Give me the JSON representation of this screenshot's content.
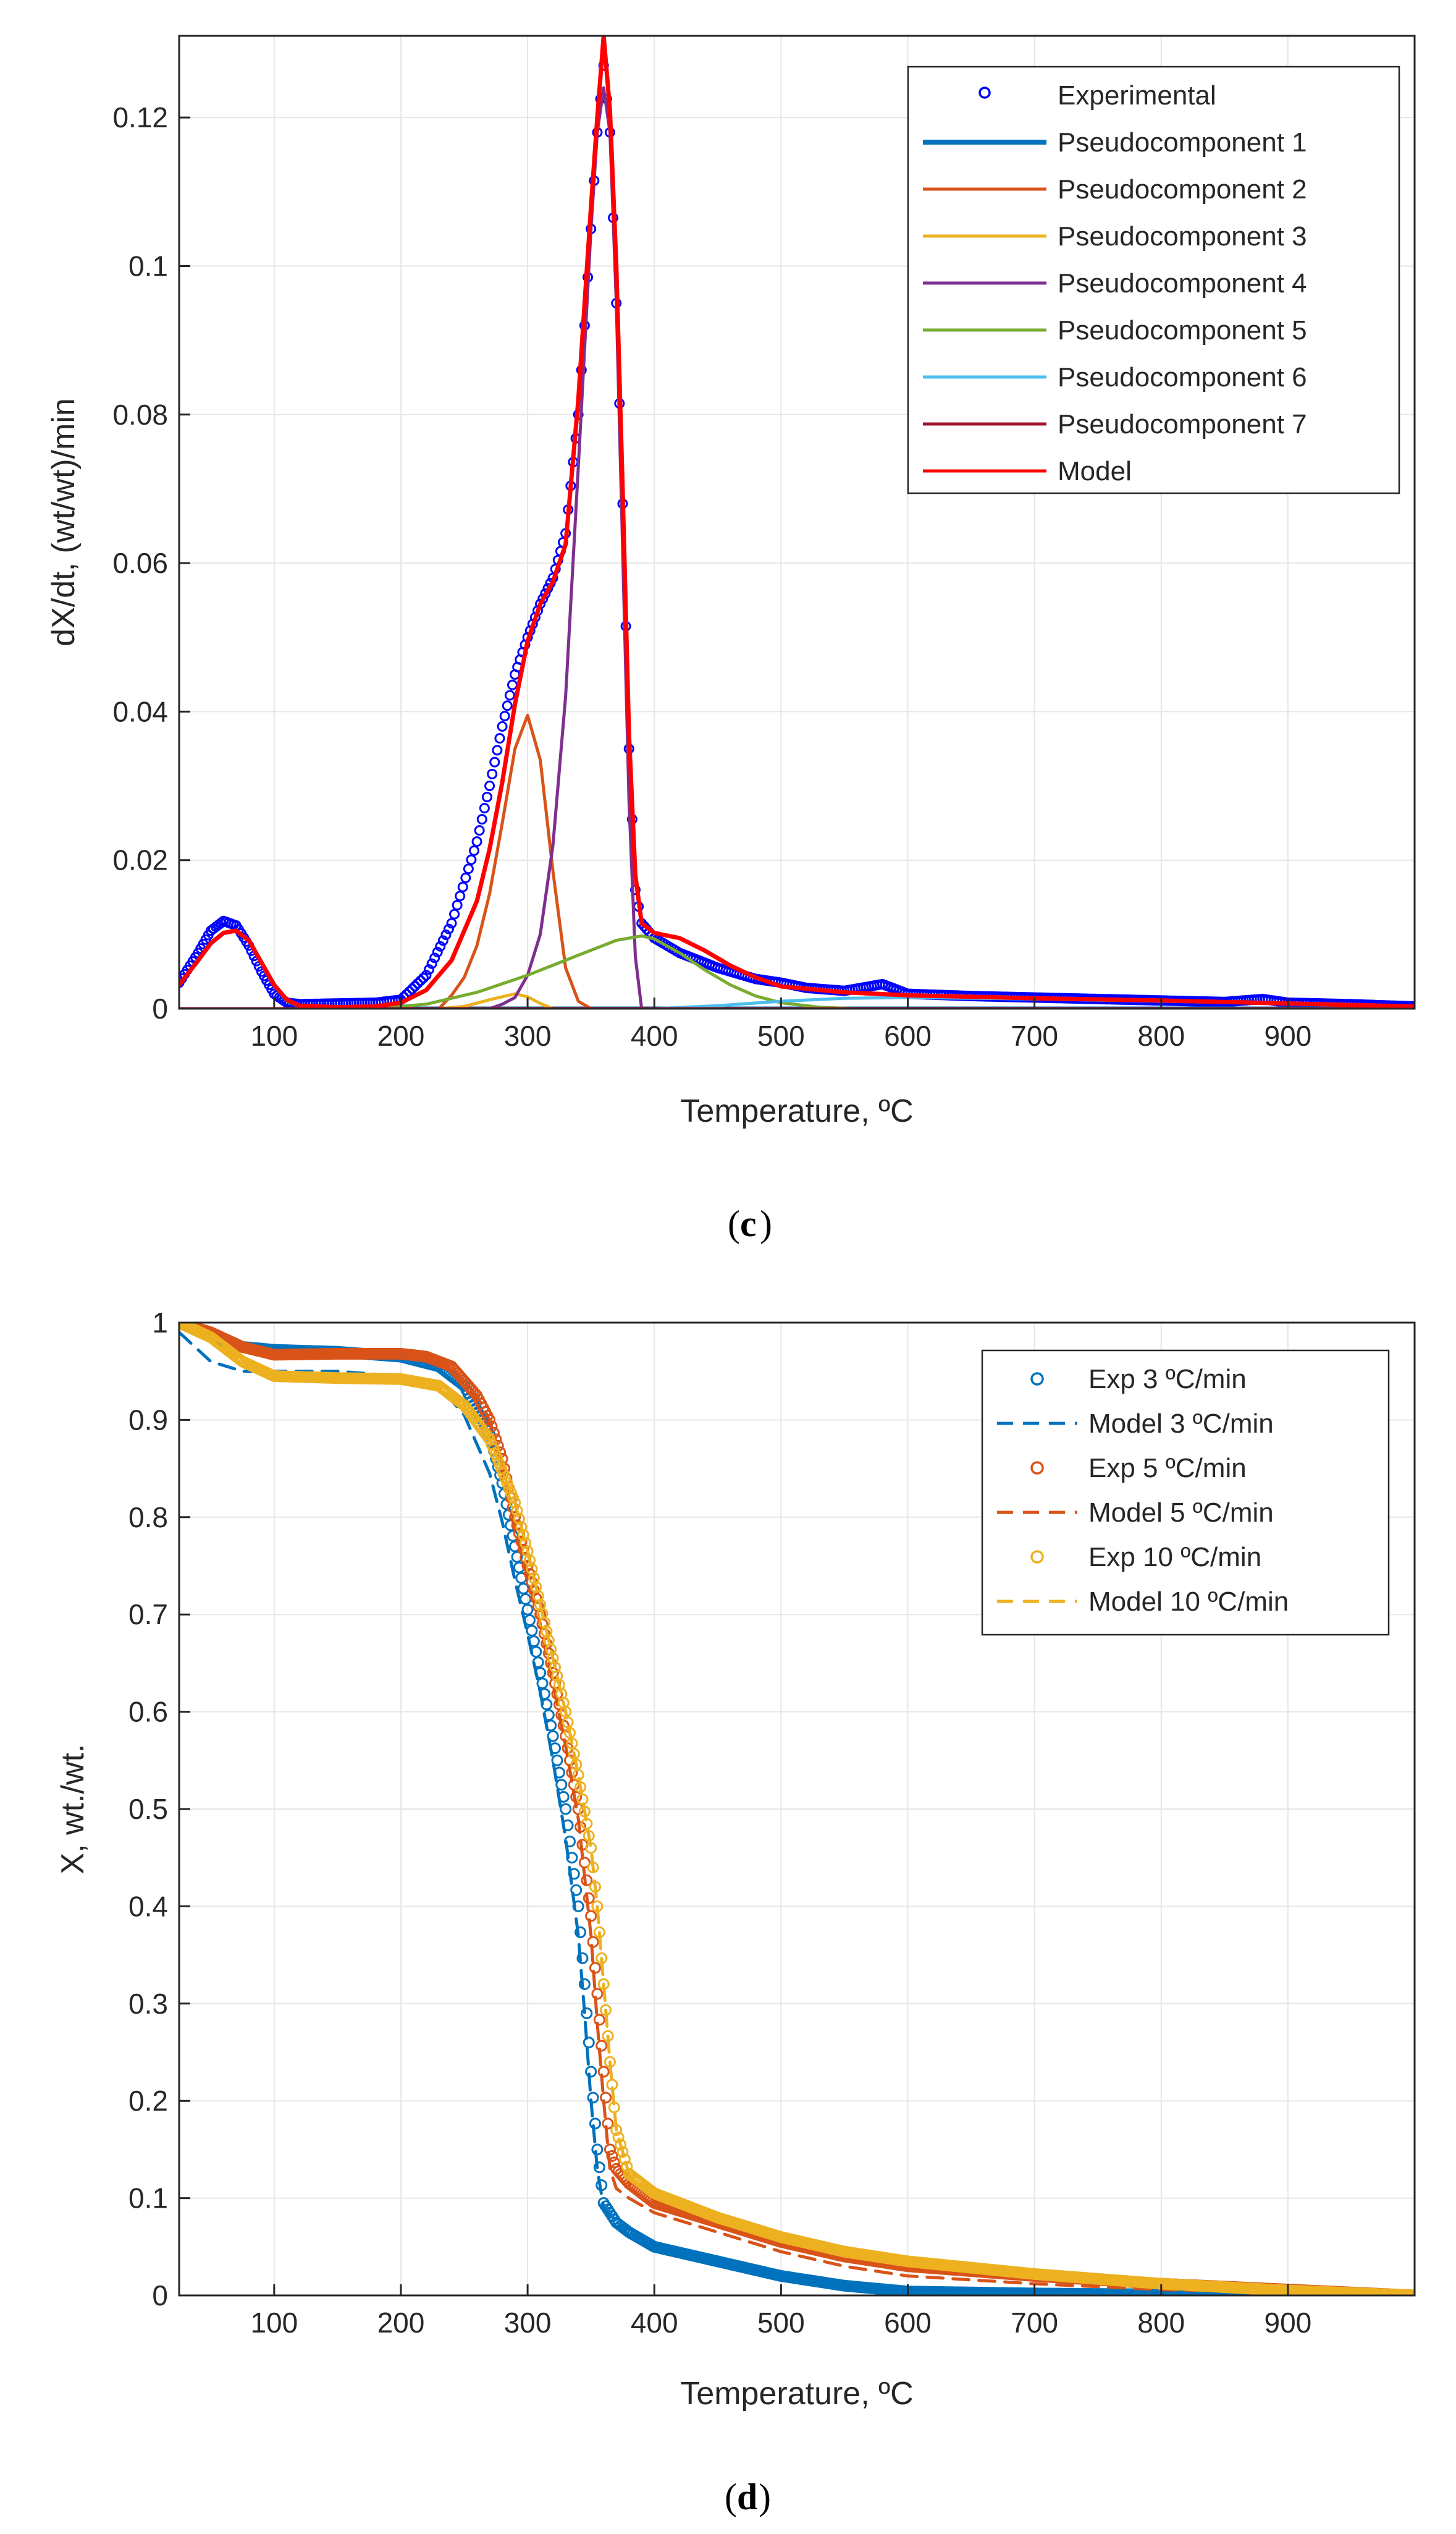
{
  "chart_data": [
    {
      "type": "line",
      "panel_label": "c",
      "xlabel": "Temperature, ºC",
      "ylabel": "dX/dt, (wt/wt)/min",
      "xlim": [
        25,
        1000
      ],
      "ylim": [
        0,
        0.131
      ],
      "xticks": [
        100,
        200,
        300,
        400,
        500,
        600,
        700,
        800,
        900
      ],
      "yticks": [
        0,
        0.02,
        0.04,
        0.06,
        0.08,
        0.1,
        0.12
      ],
      "ytick_labels": [
        "0",
        "0.02",
        "0.04",
        "0.06",
        "0.08",
        "0.1",
        "0.12"
      ],
      "grid": true,
      "legend_position": "top-right",
      "series": [
        {
          "name": "Experimental",
          "style": "markers",
          "color": "#0000ff",
          "x": [
            25,
            40,
            50,
            60,
            70,
            80,
            90,
            100,
            110,
            120,
            150,
            180,
            200,
            220,
            240,
            260,
            270,
            280,
            290,
            300,
            310,
            320,
            330,
            340,
            345,
            350,
            355,
            360,
            365,
            370,
            375,
            380,
            385,
            390,
            400,
            420,
            450,
            480,
            500,
            520,
            550,
            580,
            600,
            650,
            700,
            750,
            800,
            850,
            880,
            900,
            950,
            1000
          ],
          "y": [
            0.0035,
            0.0075,
            0.0105,
            0.0118,
            0.0112,
            0.0085,
            0.005,
            0.002,
            0.0008,
            0.0006,
            0.0007,
            0.0008,
            0.0012,
            0.0045,
            0.0115,
            0.0225,
            0.03,
            0.038,
            0.045,
            0.05,
            0.0545,
            0.058,
            0.064,
            0.08,
            0.092,
            0.105,
            0.118,
            0.127,
            0.118,
            0.095,
            0.068,
            0.035,
            0.016,
            0.0115,
            0.0095,
            0.0075,
            0.0055,
            0.004,
            0.0035,
            0.0028,
            0.0024,
            0.0033,
            0.002,
            0.0017,
            0.0015,
            0.0013,
            0.0011,
            0.0009,
            0.0013,
            0.0008,
            0.0006,
            0.0003
          ]
        },
        {
          "name": "Pseudocomponent 1",
          "style": "line",
          "color": "#0072bd",
          "x": [
            25,
            40,
            50,
            60,
            70,
            80,
            90,
            100,
            110,
            120,
            140,
            1000
          ],
          "y": [
            0.0032,
            0.0065,
            0.0088,
            0.0102,
            0.0105,
            0.0092,
            0.0062,
            0.0032,
            0.0011,
            0.0003,
            0,
            0
          ]
        },
        {
          "name": "Pseudocomponent 2",
          "style": "line",
          "color": "#d95319",
          "x": [
            25,
            230,
            240,
            250,
            260,
            270,
            280,
            290,
            300,
            310,
            320,
            330,
            340,
            350,
            1000
          ],
          "y": [
            0,
            0,
            0.0018,
            0.0042,
            0.0085,
            0.0155,
            0.025,
            0.035,
            0.0395,
            0.0335,
            0.0185,
            0.0055,
            0.001,
            0,
            0
          ]
        },
        {
          "name": "Pseudocomponent 3",
          "style": "line",
          "color": "#edb120",
          "x": [
            25,
            230,
            250,
            270,
            290,
            300,
            310,
            320,
            1000
          ],
          "y": [
            0,
            0,
            0.0003,
            0.0012,
            0.002,
            0.0016,
            0.0007,
            0,
            0
          ]
        },
        {
          "name": "Pseudocomponent 4",
          "style": "line",
          "color": "#7e2f8e",
          "x": [
            25,
            270,
            280,
            290,
            300,
            310,
            320,
            330,
            340,
            350,
            355,
            360,
            365,
            370,
            375,
            380,
            385,
            390,
            1000
          ],
          "y": [
            0,
            0,
            0.0006,
            0.0015,
            0.0045,
            0.01,
            0.022,
            0.042,
            0.073,
            0.105,
            0.118,
            0.124,
            0.118,
            0.095,
            0.062,
            0.028,
            0.007,
            0,
            0
          ]
        },
        {
          "name": "Pseudocomponent 5",
          "style": "line",
          "color": "#77ac30",
          "x": [
            25,
            180,
            220,
            260,
            300,
            340,
            370,
            390,
            400,
            420,
            440,
            460,
            480,
            500,
            530,
            560,
            1000
          ],
          "y": [
            0,
            0,
            0.0006,
            0.0022,
            0.0045,
            0.0072,
            0.0092,
            0.0098,
            0.0094,
            0.0075,
            0.0052,
            0.0032,
            0.0017,
            0.0008,
            0.0002,
            0,
            0
          ]
        },
        {
          "name": "Pseudocomponent 6",
          "style": "line",
          "color": "#4dbeee",
          "x": [
            25,
            400,
            450,
            500,
            550,
            600,
            700,
            800,
            900,
            1000
          ],
          "y": [
            0,
            0,
            0.0004,
            0.001,
            0.0014,
            0.0015,
            0.0013,
            0.001,
            0.0007,
            0.0003
          ]
        },
        {
          "name": "Pseudocomponent 7",
          "style": "line",
          "color": "#a2142f",
          "x": [
            25,
            1000
          ],
          "y": [
            0,
            0
          ]
        },
        {
          "name": "Model",
          "style": "line",
          "color": "#ff0000",
          "x": [
            25,
            40,
            50,
            60,
            70,
            80,
            90,
            100,
            110,
            120,
            150,
            180,
            200,
            220,
            240,
            260,
            270,
            280,
            290,
            300,
            310,
            320,
            330,
            340,
            345,
            350,
            355,
            360,
            365,
            370,
            375,
            380,
            385,
            390,
            400,
            420,
            440,
            460,
            480,
            500,
            550,
            600,
            700,
            800,
            900,
            1000
          ],
          "y": [
            0.0032,
            0.0065,
            0.0088,
            0.0102,
            0.0105,
            0.0092,
            0.0062,
            0.0032,
            0.0012,
            0.0004,
            0.0002,
            0.0003,
            0.0008,
            0.0025,
            0.0065,
            0.0145,
            0.0215,
            0.0305,
            0.041,
            0.0495,
            0.0545,
            0.0575,
            0.0625,
            0.082,
            0.095,
            0.108,
            0.12,
            0.131,
            0.121,
            0.1,
            0.07,
            0.037,
            0.018,
            0.0115,
            0.0102,
            0.0095,
            0.0078,
            0.0058,
            0.0042,
            0.003,
            0.0022,
            0.0018,
            0.0014,
            0.0011,
            0.0007,
            0.0003
          ]
        }
      ]
    },
    {
      "type": "line",
      "panel_label": "d",
      "xlabel": "Temperature, ºC",
      "ylabel": "X, wt./wt.",
      "xlim": [
        25,
        1000
      ],
      "ylim": [
        0,
        1
      ],
      "xticks": [
        100,
        200,
        300,
        400,
        500,
        600,
        700,
        800,
        900
      ],
      "yticks": [
        0,
        0.1,
        0.2,
        0.3,
        0.4,
        0.5,
        0.6,
        0.7,
        0.8,
        0.9,
        1
      ],
      "ytick_labels": [
        "0",
        "0.1",
        "0.2",
        "0.3",
        "0.4",
        "0.5",
        "0.6",
        "0.7",
        "0.8",
        "0.9",
        "1"
      ],
      "grid": true,
      "legend_position": "top-right",
      "series": [
        {
          "name": "Exp 3 ºC/min",
          "style": "markers",
          "color": "#0072bd",
          "x": [
            25,
            50,
            75,
            100,
            150,
            200,
            230,
            250,
            270,
            280,
            290,
            300,
            310,
            320,
            330,
            340,
            345,
            350,
            355,
            360,
            370,
            380,
            400,
            450,
            500,
            550,
            600,
            700,
            800,
            900,
            1000
          ],
          "y": [
            1.0,
            0.985,
            0.975,
            0.972,
            0.97,
            0.965,
            0.955,
            0.935,
            0.885,
            0.835,
            0.77,
            0.705,
            0.64,
            0.575,
            0.5,
            0.4,
            0.32,
            0.23,
            0.15,
            0.095,
            0.075,
            0.065,
            0.05,
            0.035,
            0.02,
            0.01,
            0.004,
            0.002,
            0.001,
            0.0005,
            0.0
          ]
        },
        {
          "name": "Model 3 ºC/min",
          "style": "dashed",
          "color": "#0072bd",
          "x": [
            25,
            50,
            75,
            100,
            150,
            200,
            230,
            250,
            270,
            280,
            290,
            300,
            310,
            320,
            330,
            340,
            345,
            350,
            355,
            360,
            370,
            380,
            400,
            450,
            500,
            550,
            600,
            700,
            800,
            900,
            1000
          ],
          "y": [
            0.99,
            0.96,
            0.95,
            0.95,
            0.95,
            0.945,
            0.935,
            0.905,
            0.845,
            0.795,
            0.735,
            0.68,
            0.62,
            0.55,
            0.47,
            0.37,
            0.29,
            0.2,
            0.13,
            0.09,
            0.07,
            0.06,
            0.047,
            0.033,
            0.02,
            0.01,
            0.005,
            0.003,
            0.002,
            0.001,
            0.0
          ]
        },
        {
          "name": "Exp 5 ºC/min",
          "style": "markers",
          "color": "#d95319",
          "x": [
            25,
            50,
            75,
            100,
            150,
            200,
            220,
            240,
            260,
            270,
            280,
            290,
            300,
            310,
            320,
            330,
            340,
            350,
            355,
            360,
            365,
            370,
            380,
            400,
            450,
            500,
            550,
            600,
            700,
            800,
            900,
            1000
          ],
          "y": [
            1.0,
            0.99,
            0.975,
            0.967,
            0.968,
            0.968,
            0.965,
            0.955,
            0.925,
            0.9,
            0.86,
            0.8,
            0.75,
            0.7,
            0.64,
            0.575,
            0.5,
            0.39,
            0.31,
            0.23,
            0.15,
            0.13,
            0.115,
            0.095,
            0.075,
            0.055,
            0.04,
            0.03,
            0.02,
            0.012,
            0.006,
            0.0
          ]
        },
        {
          "name": "Model 5 ºC/min",
          "style": "dashed",
          "color": "#d95319",
          "x": [
            25,
            50,
            75,
            100,
            150,
            200,
            220,
            240,
            260,
            270,
            280,
            290,
            300,
            310,
            320,
            330,
            340,
            350,
            355,
            360,
            365,
            370,
            380,
            400,
            450,
            500,
            550,
            600,
            700,
            800,
            900,
            1000
          ],
          "y": [
            1.0,
            0.99,
            0.975,
            0.967,
            0.968,
            0.968,
            0.965,
            0.955,
            0.925,
            0.9,
            0.855,
            0.79,
            0.74,
            0.69,
            0.63,
            0.565,
            0.49,
            0.37,
            0.28,
            0.2,
            0.13,
            0.11,
            0.1,
            0.085,
            0.065,
            0.045,
            0.03,
            0.02,
            0.012,
            0.006,
            0.003,
            0.0
          ]
        },
        {
          "name": "Exp 10 ºC/min",
          "style": "markers",
          "color": "#edb120",
          "x": [
            25,
            50,
            75,
            100,
            150,
            200,
            230,
            250,
            270,
            290,
            300,
            310,
            320,
            330,
            340,
            350,
            355,
            360,
            365,
            370,
            380,
            400,
            450,
            500,
            550,
            600,
            700,
            800,
            900,
            1000
          ],
          "y": [
            1.0,
            0.985,
            0.96,
            0.945,
            0.943,
            0.942,
            0.935,
            0.915,
            0.88,
            0.815,
            0.765,
            0.71,
            0.655,
            0.6,
            0.535,
            0.46,
            0.4,
            0.32,
            0.24,
            0.17,
            0.125,
            0.105,
            0.08,
            0.06,
            0.045,
            0.035,
            0.022,
            0.012,
            0.005,
            0.0
          ]
        },
        {
          "name": "Model 10 ºC/min",
          "style": "dashed",
          "color": "#edb120",
          "x": [
            25,
            50,
            75,
            100,
            150,
            200,
            230,
            250,
            270,
            290,
            300,
            310,
            320,
            330,
            340,
            350,
            355,
            360,
            365,
            370,
            380,
            400,
            450,
            500,
            550,
            600,
            700,
            800,
            900,
            1000
          ],
          "y": [
            1.0,
            0.985,
            0.96,
            0.945,
            0.943,
            0.942,
            0.935,
            0.915,
            0.88,
            0.815,
            0.765,
            0.71,
            0.655,
            0.6,
            0.535,
            0.46,
            0.4,
            0.32,
            0.24,
            0.17,
            0.125,
            0.105,
            0.08,
            0.06,
            0.045,
            0.035,
            0.022,
            0.012,
            0.005,
            0.0
          ]
        }
      ]
    }
  ]
}
